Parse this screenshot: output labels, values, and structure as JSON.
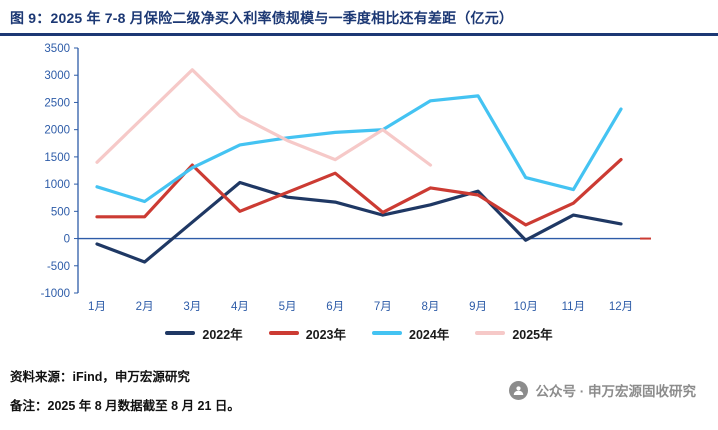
{
  "header": {
    "title": "图 9：2025 年 7-8 月保险二级净买入利率债规模与一季度相比还有差距（亿元）"
  },
  "colors": {
    "title_navy": "#1C3874",
    "axis_blue": "#2E5CA8",
    "footer_text": "#111111",
    "wechat_gray": "#8C8C8C"
  },
  "chart_data": {
    "type": "line",
    "title": "2025 年 7-8 月保险二级净买入利率债规模与一季度相比还有差距",
    "unit": "亿元",
    "categories": [
      "1月",
      "2月",
      "3月",
      "4月",
      "5月",
      "6月",
      "7月",
      "8月",
      "9月",
      "10月",
      "11月",
      "12月"
    ],
    "series": [
      {
        "key": "2022",
        "name": "2022年",
        "color": "#1F3864",
        "values": [
          -100,
          -430,
          300,
          1030,
          760,
          670,
          430,
          620,
          870,
          -30,
          430,
          270
        ]
      },
      {
        "key": "2023",
        "name": "2023年",
        "color": "#CC3B33",
        "values": [
          400,
          400,
          1350,
          500,
          850,
          1200,
          480,
          930,
          800,
          250,
          650,
          1450
        ]
      },
      {
        "key": "2024",
        "name": "2024年",
        "color": "#44C3F2",
        "values": [
          950,
          680,
          1300,
          1720,
          1850,
          1950,
          2000,
          2530,
          2620,
          1120,
          900,
          2380
        ]
      },
      {
        "key": "2025",
        "name": "2025年",
        "color": "#F6C9C8",
        "values": [
          1400,
          2250,
          3100,
          2250,
          1800,
          1450,
          2000,
          1350,
          null,
          null,
          null,
          null
        ]
      }
    ],
    "ylim": [
      -1000,
      3500
    ],
    "ytick_step": 500,
    "axis_color": "#2E5CA8",
    "grid": false,
    "legend_position": "bottom"
  },
  "footer": {
    "source": "资料来源：iFind，申万宏源研究",
    "note": "备注：2025 年 8 月数据截至 8 月 21 日。",
    "wechat": "公众号 · 申万宏源固收研究"
  }
}
